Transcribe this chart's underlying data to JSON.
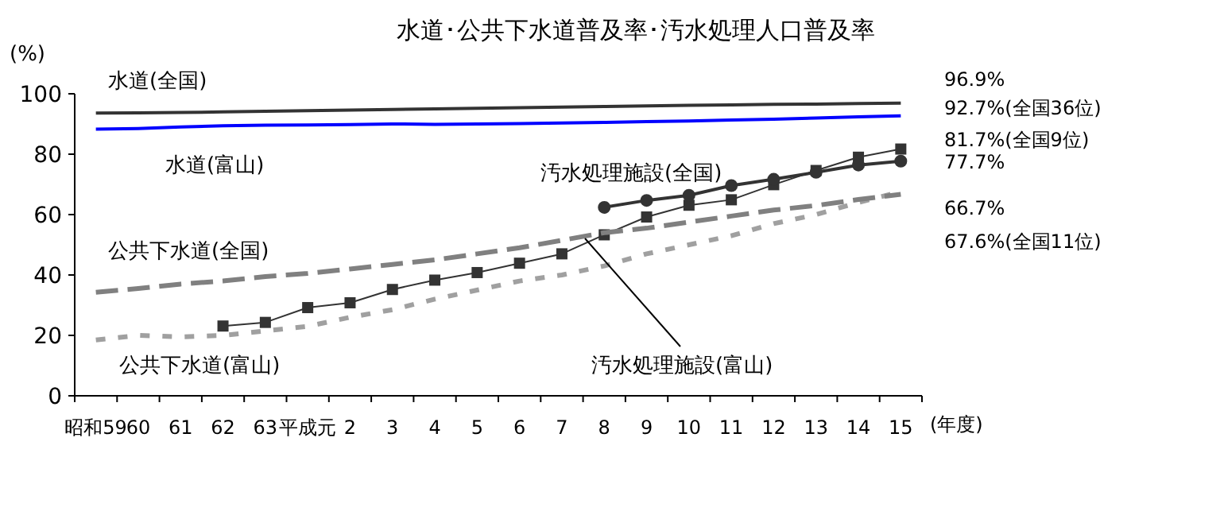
{
  "chart_data": {
    "type": "line",
    "title": "水道･公共下水道普及率･汚水処理人口普及率",
    "ylabel": "(%)",
    "xlabel": "(年度)",
    "categories": [
      "昭和59",
      "60",
      "61",
      "62",
      "63",
      "平成元",
      "2",
      "3",
      "4",
      "5",
      "6",
      "7",
      "8",
      "9",
      "10",
      "11",
      "12",
      "13",
      "14",
      "15"
    ],
    "ylim": [
      0,
      100
    ],
    "yticks": [
      0,
      20,
      40,
      60,
      80,
      100
    ],
    "grid": false,
    "series": [
      {
        "name": "水道(全国)",
        "color": "#333333",
        "line_style": "solid",
        "marker": "none",
        "values": [
          93.6,
          93.7,
          93.8,
          94.0,
          94.2,
          94.4,
          94.6,
          94.8,
          95.0,
          95.2,
          95.4,
          95.6,
          95.8,
          96.0,
          96.2,
          96.3,
          96.5,
          96.6,
          96.8,
          96.9
        ]
      },
      {
        "name": "水道(富山)",
        "color": "#0000ff",
        "line_style": "solid",
        "marker": "none",
        "values": [
          88.3,
          88.5,
          89.0,
          89.4,
          89.6,
          89.7,
          89.8,
          90.0,
          89.9,
          90.0,
          90.1,
          90.3,
          90.5,
          90.8,
          91.0,
          91.3,
          91.6,
          92.0,
          92.4,
          92.7
        ]
      },
      {
        "name": "公共下水道(全国)",
        "color": "#808080",
        "line_style": "dashed",
        "marker": "none",
        "values": [
          34.3,
          35.5,
          37,
          38,
          39.5,
          40.5,
          42,
          43.5,
          45,
          47,
          49,
          51.5,
          54,
          55.5,
          57.5,
          59.5,
          61.5,
          63,
          65,
          66.7
        ]
      },
      {
        "name": "公共下水道(富山)",
        "color": "#a0a0a0",
        "line_style": "dotted",
        "marker": "none",
        "values": [
          18.5,
          20,
          19.5,
          20,
          21.5,
          23,
          26,
          28.5,
          32,
          35,
          38,
          40,
          43,
          47,
          50,
          53,
          57,
          60,
          64,
          67.6
        ]
      },
      {
        "name": "汚水処理施設(全国)",
        "color": "#333333",
        "line_style": "solid",
        "marker": "circle",
        "values": [
          null,
          null,
          null,
          null,
          null,
          null,
          null,
          null,
          null,
          null,
          null,
          null,
          62.4,
          64.7,
          66.4,
          69.6,
          71.7,
          74,
          76.4,
          77.7
        ]
      },
      {
        "name": "汚水処理施設(富山)",
        "color": "#333333",
        "line_style": "solid",
        "marker": "square",
        "values": [
          null,
          null,
          null,
          23.1,
          24.3,
          29.2,
          30.8,
          35.2,
          38.3,
          40.8,
          43.9,
          47.0,
          53.3,
          59.2,
          63.1,
          64.9,
          69.9,
          74.6,
          79,
          81.7
        ]
      }
    ],
    "annotations": [
      "96.9%",
      "92.7%(全国36位)",
      "81.7%(全国9位)",
      "77.7%",
      "66.7%",
      "67.6%(全国11位)"
    ]
  }
}
